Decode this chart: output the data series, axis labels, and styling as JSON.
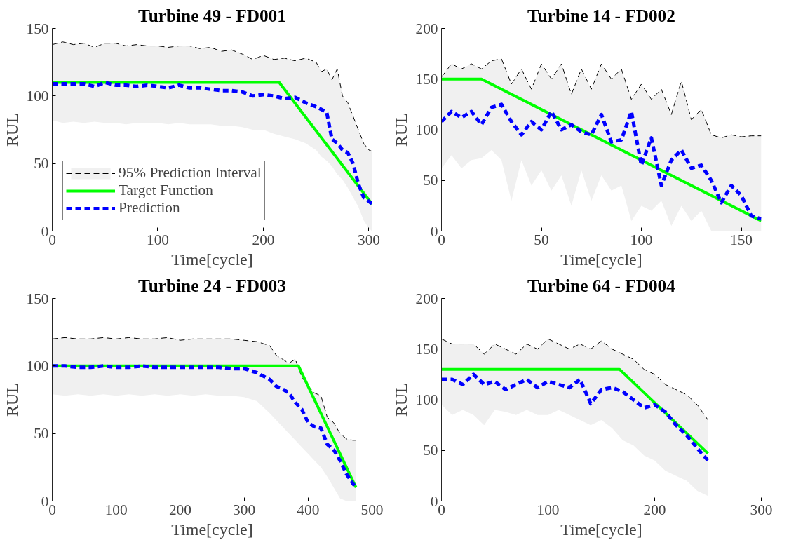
{
  "chart_data": [
    {
      "type": "line",
      "title": "Turbine 49 - FD001",
      "xlabel": "Time[cycle]",
      "ylabel": "RUL",
      "xlim": [
        0,
        303
      ],
      "ylim": [
        0,
        150
      ],
      "xticks": [
        0,
        100,
        200,
        300
      ],
      "yticks": [
        0,
        50,
        100,
        150
      ],
      "grid": false,
      "legend": "bottom left",
      "x": [
        0,
        10,
        20,
        30,
        40,
        50,
        60,
        70,
        80,
        90,
        100,
        110,
        120,
        130,
        140,
        150,
        160,
        170,
        180,
        190,
        200,
        210,
        220,
        230,
        240,
        250,
        255,
        260,
        265,
        270,
        275,
        280,
        285,
        290,
        295,
        300,
        303
      ],
      "series": [
        {
          "name": "95% Prediction Interval",
          "type": "line",
          "color": "#000000",
          "line_style": "dashed",
          "values": [
            138,
            140,
            138,
            139,
            136,
            139,
            139,
            137,
            138,
            137,
            137,
            136,
            137,
            137,
            135,
            136,
            133,
            134,
            131,
            127,
            130,
            127,
            128,
            126,
            128,
            125,
            118,
            120,
            112,
            120,
            100,
            95,
            85,
            75,
            65,
            60,
            59
          ]
        },
        {
          "name": "Target Function",
          "type": "line",
          "color": "#00ff00",
          "line_style": "solid",
          "x": [
            0,
            215,
            303
          ],
          "values": [
            110,
            110,
            20
          ]
        },
        {
          "name": "Prediction",
          "type": "line",
          "color": "#0000ff",
          "line_style": "dashed",
          "values": [
            109,
            109,
            109,
            109,
            107,
            110,
            108,
            108,
            107,
            108,
            107,
            106,
            108,
            106,
            106,
            105,
            104,
            104,
            103,
            100,
            101,
            100,
            98,
            99,
            95,
            92,
            90,
            88,
            68,
            65,
            60,
            58,
            50,
            35,
            25,
            22,
            20
          ],
          "lower": [
            82,
            80,
            81,
            80,
            81,
            80,
            80,
            79,
            80,
            80,
            80,
            79,
            80,
            79,
            79,
            79,
            78,
            78,
            77,
            75,
            75,
            72,
            70,
            68,
            65,
            60,
            55,
            52,
            48,
            42,
            38,
            32,
            25,
            18,
            8,
            2,
            0
          ],
          "upper": [
            138,
            140,
            138,
            139,
            136,
            139,
            139,
            137,
            138,
            137,
            137,
            136,
            137,
            137,
            135,
            136,
            133,
            134,
            131,
            127,
            130,
            127,
            128,
            126,
            128,
            125,
            118,
            120,
            112,
            120,
            100,
            95,
            85,
            75,
            65,
            60,
            59
          ]
        }
      ]
    },
    {
      "type": "line",
      "title": "Turbine 14 - FD002",
      "xlabel": "Time[cycle]",
      "ylabel": "RUL",
      "xlim": [
        0,
        160
      ],
      "ylim": [
        0,
        200
      ],
      "xticks": [
        0,
        50,
        100,
        150
      ],
      "yticks": [
        0,
        50,
        100,
        150,
        200
      ],
      "grid": false,
      "x": [
        0,
        5,
        10,
        15,
        20,
        25,
        30,
        35,
        40,
        45,
        50,
        55,
        60,
        65,
        70,
        75,
        80,
        85,
        90,
        95,
        100,
        105,
        110,
        115,
        120,
        125,
        130,
        135,
        140,
        145,
        150,
        155,
        160
      ],
      "series": [
        {
          "type": "line",
          "color": "#000000",
          "line_style": "dashed",
          "values": [
            152,
            165,
            160,
            165,
            160,
            168,
            170,
            145,
            160,
            140,
            165,
            150,
            165,
            135,
            160,
            140,
            165,
            150,
            160,
            130,
            145,
            130,
            140,
            115,
            148,
            110,
            120,
            95,
            92,
            95,
            93,
            94,
            94
          ]
        },
        {
          "type": "line",
          "color": "#00ff00",
          "line_style": "solid",
          "x": [
            0,
            20,
            160
          ],
          "values": [
            150,
            150,
            10
          ]
        },
        {
          "type": "line",
          "color": "#0000ff",
          "line_style": "dashed",
          "values": [
            108,
            118,
            112,
            118,
            105,
            122,
            125,
            108,
            95,
            108,
            100,
            118,
            100,
            105,
            98,
            95,
            115,
            88,
            90,
            118,
            65,
            92,
            45,
            70,
            80,
            62,
            65,
            50,
            28,
            45,
            35,
            15,
            12
          ],
          "lower": [
            62,
            75,
            62,
            70,
            72,
            80,
            70,
            30,
            70,
            45,
            60,
            40,
            55,
            25,
            60,
            30,
            55,
            40,
            45,
            10,
            25,
            20,
            30,
            5,
            25,
            10,
            20,
            0,
            0,
            0,
            0,
            0,
            0
          ],
          "upper": [
            152,
            165,
            160,
            165,
            160,
            168,
            170,
            145,
            160,
            140,
            165,
            150,
            165,
            135,
            160,
            140,
            165,
            150,
            160,
            130,
            145,
            130,
            140,
            115,
            148,
            110,
            120,
            95,
            92,
            95,
            93,
            94,
            94
          ]
        }
      ]
    },
    {
      "type": "line",
      "title": "Turbine 24 - FD003",
      "xlabel": "Time[cycle]",
      "ylabel": "RUL",
      "xlim": [
        0,
        500
      ],
      "ylim": [
        0,
        150
      ],
      "xticks": [
        0,
        100,
        200,
        300,
        400,
        500
      ],
      "yticks": [
        0,
        50,
        100,
        150
      ],
      "grid": false,
      "x": [
        0,
        20,
        40,
        60,
        80,
        100,
        120,
        140,
        160,
        180,
        200,
        220,
        240,
        260,
        280,
        300,
        320,
        340,
        350,
        360,
        370,
        380,
        390,
        400,
        410,
        420,
        430,
        440,
        450,
        460,
        470,
        475
      ],
      "series": [
        {
          "type": "line",
          "color": "#000000",
          "line_style": "dashed",
          "values": [
            120,
            121,
            120,
            120,
            121,
            120,
            121,
            120,
            120,
            121,
            119,
            120,
            120,
            120,
            120,
            119,
            118,
            115,
            108,
            105,
            102,
            105,
            92,
            85,
            80,
            78,
            62,
            58,
            50,
            46,
            45,
            45
          ]
        },
        {
          "type": "line",
          "color": "#00ff00",
          "line_style": "solid",
          "x": [
            0,
            385,
            475
          ],
          "values": [
            100,
            100,
            10
          ]
        },
        {
          "type": "line",
          "color": "#0000ff",
          "line_style": "dashed",
          "values": [
            100,
            100,
            99,
            99,
            100,
            99,
            99,
            100,
            99,
            99,
            99,
            99,
            99,
            99,
            98,
            98,
            95,
            90,
            85,
            83,
            80,
            73,
            68,
            58,
            55,
            54,
            42,
            38,
            30,
            20,
            13,
            10
          ],
          "lower": [
            79,
            78,
            79,
            78,
            79,
            78,
            79,
            78,
            79,
            78,
            79,
            78,
            79,
            78,
            78,
            77,
            74,
            65,
            60,
            55,
            50,
            45,
            40,
            35,
            30,
            25,
            18,
            10,
            2,
            0,
            0,
            0
          ],
          "upper": [
            120,
            121,
            120,
            120,
            121,
            120,
            121,
            120,
            120,
            121,
            119,
            120,
            120,
            120,
            120,
            119,
            118,
            115,
            108,
            105,
            102,
            105,
            92,
            85,
            80,
            78,
            62,
            58,
            50,
            46,
            45,
            45
          ]
        }
      ]
    },
    {
      "type": "line",
      "title": "Turbine 64 - FD004",
      "xlabel": "Time[cycle]",
      "ylabel": "RUL",
      "xlim": [
        0,
        300
      ],
      "ylim": [
        0,
        200
      ],
      "xticks": [
        0,
        100,
        200,
        300
      ],
      "yticks": [
        0,
        50,
        100,
        150,
        200
      ],
      "grid": false,
      "x": [
        0,
        10,
        20,
        30,
        40,
        50,
        60,
        70,
        80,
        90,
        100,
        110,
        120,
        130,
        140,
        150,
        160,
        170,
        180,
        190,
        200,
        210,
        220,
        230,
        240,
        250
      ],
      "series": [
        {
          "type": "line",
          "color": "#000000",
          "line_style": "dashed",
          "values": [
            160,
            155,
            155,
            155,
            145,
            155,
            150,
            145,
            155,
            150,
            160,
            155,
            150,
            155,
            150,
            158,
            150,
            145,
            140,
            130,
            125,
            115,
            110,
            105,
            95,
            80
          ]
        },
        {
          "type": "line",
          "color": "#00ff00",
          "line_style": "solid",
          "x": [
            0,
            167,
            250
          ],
          "values": [
            130,
            130,
            47
          ]
        },
        {
          "type": "line",
          "color": "#0000ff",
          "line_style": "dashed",
          "values": [
            120,
            120,
            115,
            125,
            115,
            118,
            110,
            115,
            120,
            112,
            118,
            115,
            112,
            120,
            96,
            110,
            112,
            108,
            100,
            92,
            95,
            88,
            75,
            65,
            52,
            40
          ],
          "lower": [
            95,
            85,
            90,
            85,
            75,
            90,
            88,
            85,
            90,
            85,
            85,
            90,
            85,
            80,
            75,
            80,
            72,
            60,
            55,
            45,
            40,
            30,
            25,
            20,
            10,
            5
          ],
          "upper": [
            160,
            155,
            155,
            155,
            145,
            155,
            150,
            145,
            155,
            150,
            160,
            155,
            150,
            155,
            150,
            158,
            150,
            145,
            140,
            130,
            125,
            115,
            110,
            105,
            95,
            80
          ]
        }
      ]
    }
  ]
}
